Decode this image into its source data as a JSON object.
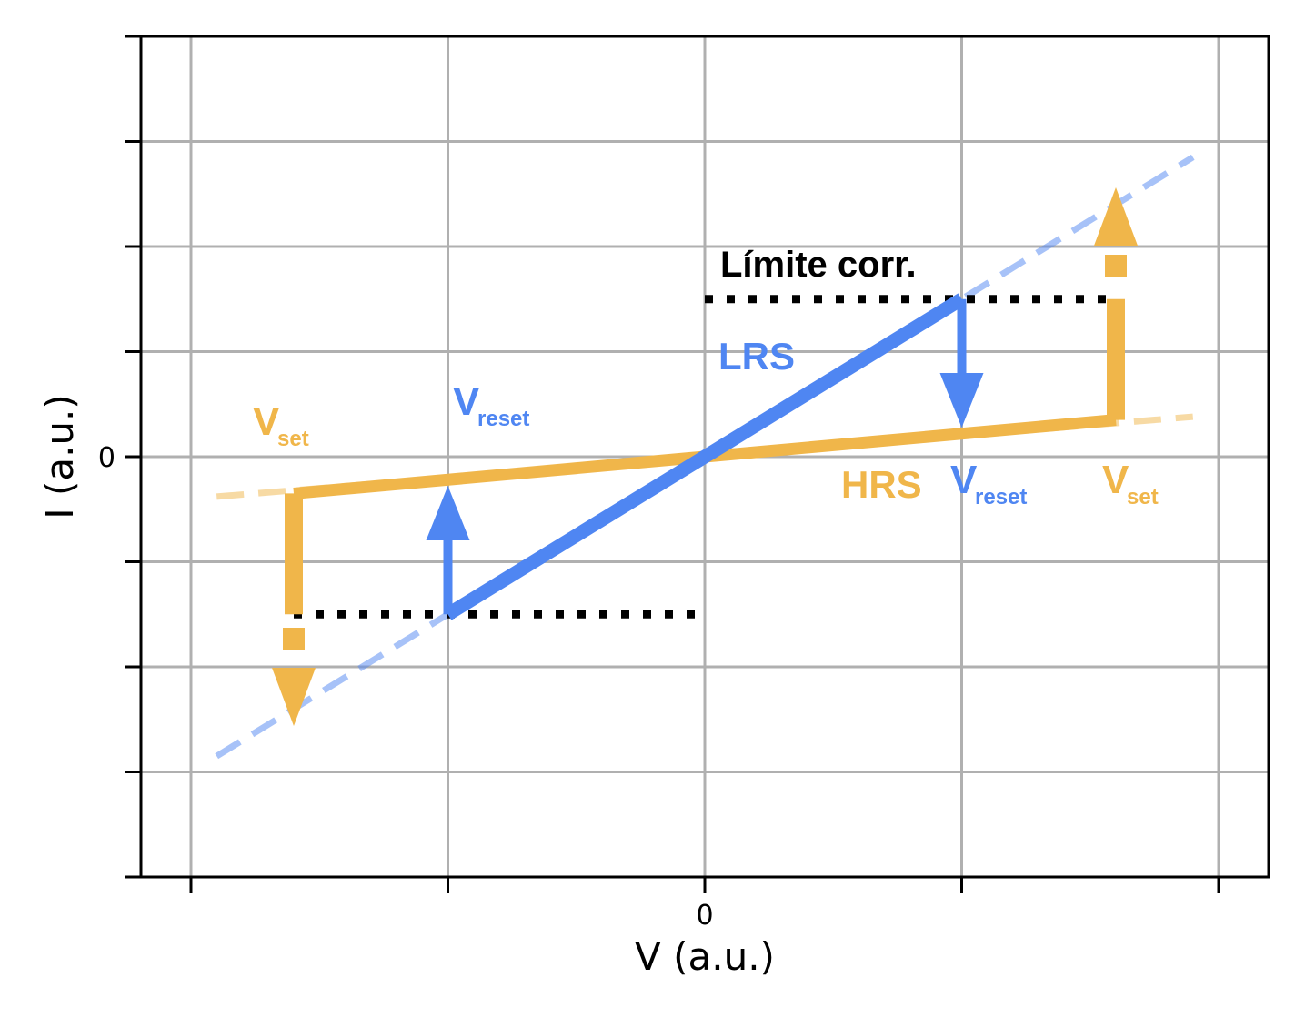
{
  "chart_data": {
    "type": "line",
    "xlabel": "V (a.u.)",
    "ylabel": "I (a.u.)",
    "xlim": [
      -1.1,
      1.1
    ],
    "ylim": [
      -4,
      4
    ],
    "grid": true,
    "x_ticks": [
      -1,
      -0.5,
      0,
      0.5,
      1
    ],
    "x_tick_labels": [
      "",
      "",
      "0",
      "",
      ""
    ],
    "y_ticks": [
      -4,
      -3,
      -2,
      -1,
      0,
      1,
      2,
      3,
      4
    ],
    "y_tick_labels": [
      "",
      "",
      "",
      "",
      "0",
      "",
      "",
      "",
      ""
    ],
    "colors": {
      "lrs": "#4f86f2",
      "hrs": "#f0b64a",
      "compliance": "#000000",
      "grid": "#b0b0b0"
    },
    "series": [
      {
        "name": "LRS",
        "style": "solid",
        "x": [
          -0.5,
          0.5
        ],
        "y": [
          -1.5,
          1.5
        ]
      },
      {
        "name": "HRS",
        "style": "solid",
        "x": [
          -0.8,
          0,
          0.8
        ],
        "y": [
          -0.35,
          0,
          0.35
        ]
      },
      {
        "style": "dashed",
        "x": [
          -0.95,
          0.95
        ],
        "y": [
          -2.85,
          2.85
        ]
      },
      {
        "style": "dashed",
        "x": [
          -0.95,
          0.95
        ],
        "y": [
          -0.38,
          0.38
        ]
      },
      {
        "style": "dotted",
        "x": [
          0,
          0.8
        ],
        "y": [
          1.5,
          1.5
        ]
      },
      {
        "style": "dotted",
        "x": [
          -0.8,
          0
        ],
        "y": [
          -1.5,
          -1.5
        ]
      }
    ],
    "labels": {
      "compliance": "Límite corr.",
      "lrs": "LRS",
      "hrs": "HRS",
      "v_letter": "V",
      "set_sub": "set",
      "reset_sub": "reset"
    }
  }
}
